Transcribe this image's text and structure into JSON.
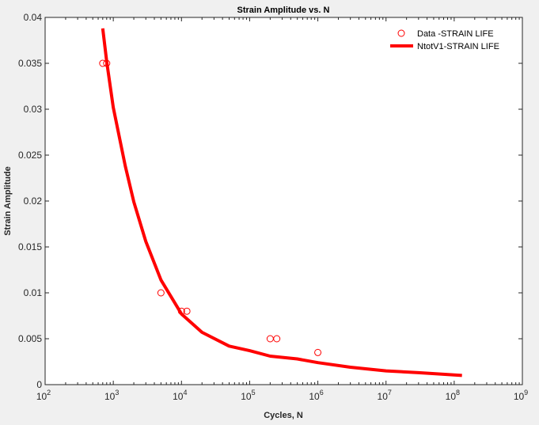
{
  "chart_data": {
    "type": "line",
    "title": "Strain Amplitude vs. N",
    "xlabel": "Cycles, N",
    "ylabel": "Strain Amplitude",
    "xscale": "log",
    "xlim": [
      100,
      1000000000
    ],
    "ylim": [
      0,
      0.04
    ],
    "x_ticks": [
      {
        "value": 100,
        "base": "10",
        "exp": "2"
      },
      {
        "value": 1000,
        "base": "10",
        "exp": "3"
      },
      {
        "value": 10000,
        "base": "10",
        "exp": "4"
      },
      {
        "value": 100000,
        "base": "10",
        "exp": "5"
      },
      {
        "value": 1000000,
        "base": "10",
        "exp": "6"
      },
      {
        "value": 10000000,
        "base": "10",
        "exp": "7"
      },
      {
        "value": 100000000,
        "base": "10",
        "exp": "8"
      },
      {
        "value": 1000000000,
        "base": "10",
        "exp": "9"
      }
    ],
    "y_ticks": [
      {
        "value": 0,
        "label": "0"
      },
      {
        "value": 0.005,
        "label": "0.005"
      },
      {
        "value": 0.01,
        "label": "0.01"
      },
      {
        "value": 0.015,
        "label": "0.015"
      },
      {
        "value": 0.02,
        "label": "0.02"
      },
      {
        "value": 0.025,
        "label": "0.025"
      },
      {
        "value": 0.03,
        "label": "0.03"
      },
      {
        "value": 0.035,
        "label": "0.035"
      },
      {
        "value": 0.04,
        "label": "0.04"
      }
    ],
    "grid": false,
    "legend_position": "top-right",
    "series": [
      {
        "name": "Data -STRAIN LIFE",
        "kind": "scatter",
        "marker": "open-circle",
        "color": "#ff0000",
        "points": [
          {
            "x": 700,
            "y": 0.035
          },
          {
            "x": 800,
            "y": 0.035
          },
          {
            "x": 5000,
            "y": 0.01
          },
          {
            "x": 10000,
            "y": 0.008
          },
          {
            "x": 12000,
            "y": 0.008
          },
          {
            "x": 200000,
            "y": 0.005
          },
          {
            "x": 250000,
            "y": 0.005
          },
          {
            "x": 1000000,
            "y": 0.0035
          }
        ]
      },
      {
        "name": "NtotV1-STRAIN LIFE",
        "kind": "line",
        "color": "#ff0000",
        "points": [
          {
            "x": 700,
            "y": 0.0388
          },
          {
            "x": 800,
            "y": 0.0352
          },
          {
            "x": 1000,
            "y": 0.0302
          },
          {
            "x": 1500,
            "y": 0.0238
          },
          {
            "x": 2000,
            "y": 0.0199
          },
          {
            "x": 3000,
            "y": 0.0156
          },
          {
            "x": 5000,
            "y": 0.0114
          },
          {
            "x": 10000,
            "y": 0.0077
          },
          {
            "x": 20000,
            "y": 0.0057
          },
          {
            "x": 50000,
            "y": 0.0042
          },
          {
            "x": 100000,
            "y": 0.0037
          },
          {
            "x": 200000,
            "y": 0.0031
          },
          {
            "x": 500000,
            "y": 0.0028
          },
          {
            "x": 1000000,
            "y": 0.0024
          },
          {
            "x": 3000000,
            "y": 0.0019
          },
          {
            "x": 10000000,
            "y": 0.0015
          },
          {
            "x": 30000000,
            "y": 0.0013
          },
          {
            "x": 130000000,
            "y": 0.001
          }
        ]
      }
    ]
  }
}
